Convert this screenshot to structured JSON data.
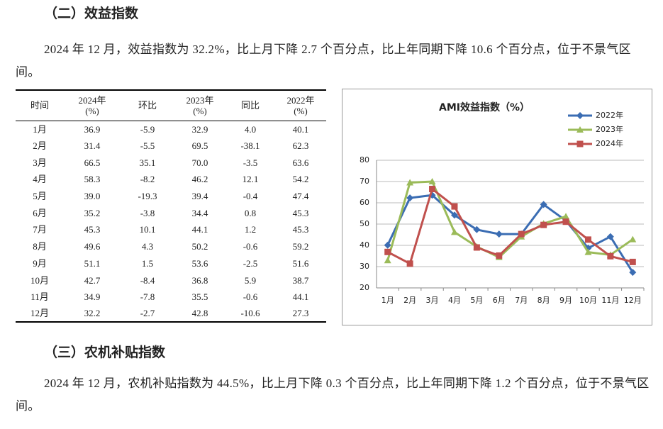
{
  "section2": {
    "title": "（二）效益指数",
    "paragraph": "2024 年 12 月，效益指数为 32.2%，比上月下降 2.7 个百分点，比上年同期下降 10.6 个百分点，位于不景气区间。"
  },
  "table": {
    "header": [
      [
        "时间"
      ],
      [
        "2024年",
        "(%)"
      ],
      [
        "环比"
      ],
      [
        "2023年",
        "(%)"
      ],
      [
        "同比"
      ],
      [
        "2022年",
        "(%)"
      ]
    ],
    "rows": [
      [
        "1月",
        "36.9",
        "-5.9",
        "32.9",
        "4.0",
        "40.1"
      ],
      [
        "2月",
        "31.4",
        "-5.5",
        "69.5",
        "-38.1",
        "62.3"
      ],
      [
        "3月",
        "66.5",
        "35.1",
        "70.0",
        "-3.5",
        "63.6"
      ],
      [
        "4月",
        "58.3",
        "-8.2",
        "46.2",
        "12.1",
        "54.2"
      ],
      [
        "5月",
        "39.0",
        "-19.3",
        "39.4",
        "-0.4",
        "47.4"
      ],
      [
        "6月",
        "35.2",
        "-3.8",
        "34.4",
        "0.8",
        "45.3"
      ],
      [
        "7月",
        "45.3",
        "10.1",
        "44.1",
        "1.2",
        "45.3"
      ],
      [
        "8月",
        "49.6",
        "4.3",
        "50.2",
        "-0.6",
        "59.2"
      ],
      [
        "9月",
        "51.1",
        "1.5",
        "53.6",
        "-2.5",
        "51.6"
      ],
      [
        "10月",
        "42.7",
        "-8.4",
        "36.8",
        "5.9",
        "38.7"
      ],
      [
        "11月",
        "34.9",
        "-7.8",
        "35.5",
        "-0.6",
        "44.1"
      ],
      [
        "12月",
        "32.2",
        "-2.7",
        "42.8",
        "-10.6",
        "27.3"
      ]
    ]
  },
  "chart_data": {
    "type": "line",
    "title": "AMI效益指数（%）",
    "categories": [
      "1月",
      "2月",
      "3月",
      "4月",
      "5月",
      "6月",
      "7月",
      "8月",
      "9月",
      "10月",
      "11月",
      "12月"
    ],
    "series": [
      {
        "name": "2022年",
        "color": "#3b6db3",
        "marker": "diamond",
        "values": [
          40.1,
          62.3,
          63.6,
          54.2,
          47.4,
          45.3,
          45.3,
          59.2,
          51.6,
          38.7,
          44.1,
          27.3
        ]
      },
      {
        "name": "2023年",
        "color": "#9bbb59",
        "marker": "triangle",
        "values": [
          32.9,
          69.5,
          70.0,
          46.2,
          39.4,
          34.4,
          44.1,
          50.2,
          53.6,
          36.8,
          35.5,
          42.8
        ]
      },
      {
        "name": "2024年",
        "color": "#c0504d",
        "marker": "square",
        "values": [
          36.9,
          31.4,
          66.5,
          58.3,
          39.0,
          35.2,
          45.3,
          49.6,
          51.1,
          42.7,
          34.9,
          32.2
        ]
      }
    ],
    "ylim": [
      20,
      80
    ],
    "yticks": [
      20,
      30,
      40,
      50,
      60,
      70,
      80
    ],
    "grid": true
  },
  "section3": {
    "title": "（三）农机补贴指数",
    "paragraph": "2024 年 12 月，农机补贴指数为 44.5%，比上月下降 0.3 个百分点，比上年同期下降 1.2 个百分点，位于不景气区间。"
  }
}
